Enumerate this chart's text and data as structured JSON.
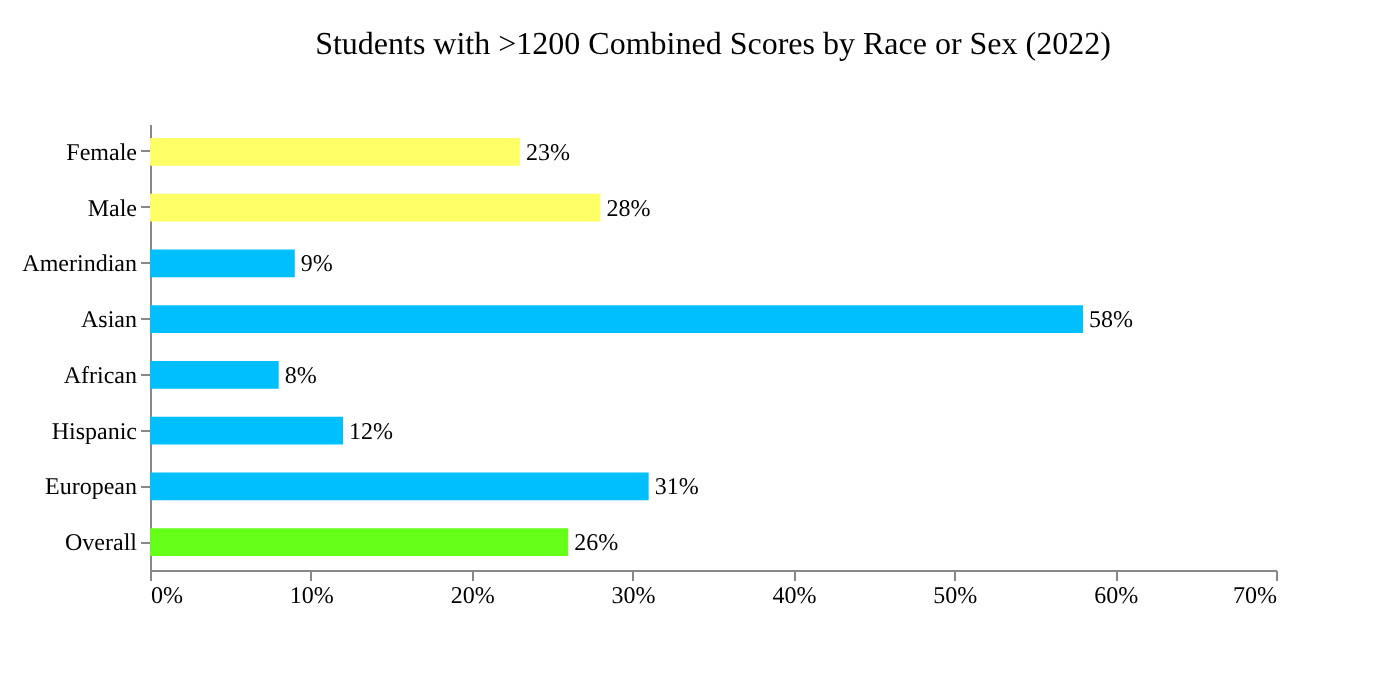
{
  "chart_data": {
    "type": "bar",
    "orientation": "horizontal",
    "title": "Students with >1200 Combined Scores by Race or Sex (2022)",
    "categories": [
      "Female",
      "Male",
      "Amerindian",
      "Asian",
      "African",
      "Hispanic",
      "European",
      "Overall"
    ],
    "values": [
      23,
      28,
      9,
      58,
      8,
      12,
      31,
      26
    ],
    "colors": [
      "#ffff66",
      "#ffff66",
      "#00bfff",
      "#00bfff",
      "#00bfff",
      "#00bfff",
      "#00bfff",
      "#66ff1a"
    ],
    "value_labels": [
      "23%",
      "28%",
      "9%",
      "58%",
      "8%",
      "12%",
      "31%",
      "26%"
    ],
    "xlim": [
      0,
      70
    ],
    "xticks": [
      {
        "value": 0,
        "label": "0%"
      },
      {
        "value": 10,
        "label": "10%"
      },
      {
        "value": 20,
        "label": "20%"
      },
      {
        "value": 30,
        "label": "30%"
      },
      {
        "value": 40,
        "label": "40%"
      },
      {
        "value": 50,
        "label": "50%"
      },
      {
        "value": 60,
        "label": "60%"
      },
      {
        "value": 70,
        "label": "70%"
      }
    ],
    "grid": false
  }
}
